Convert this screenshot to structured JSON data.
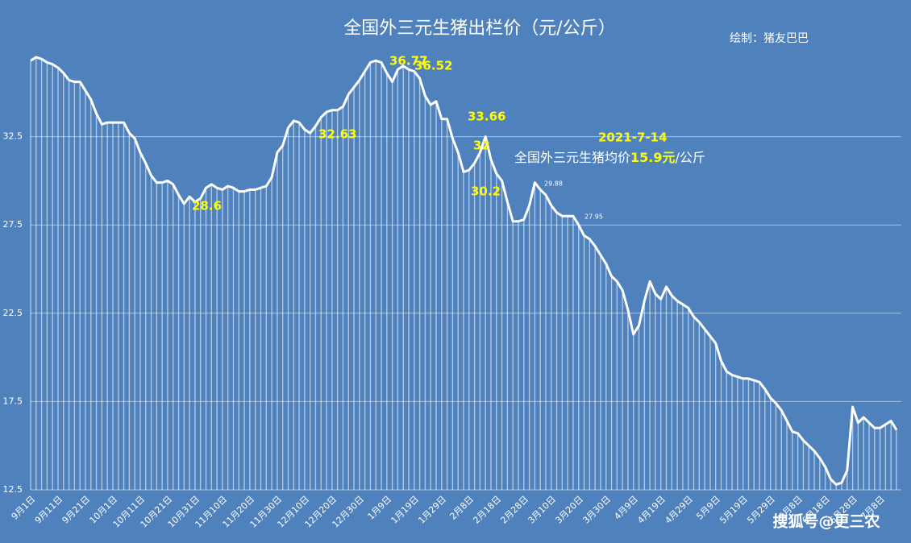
{
  "chart_data": {
    "type": "area",
    "title": "全国外三元生猪出栏价（元/公斤）",
    "credit": "绘制：猪友巴巴",
    "watermark": "搜狐号@更三农",
    "annotations": [
      "36.77",
      "36.52",
      "33.66",
      "32",
      "32.63",
      "28.6",
      "30.2",
      "29.88",
      "27.95",
      "2021-7-14"
    ],
    "summary": [
      "全国外三元生猪均价",
      "15.9元",
      "/公斤"
    ],
    "categories": [
      "9月1日",
      null,
      null,
      null,
      null,
      "9月11日",
      null,
      null,
      null,
      null,
      "9月21日",
      null,
      null,
      null,
      null,
      "10月1日",
      null,
      null,
      null,
      null,
      "10月11日",
      null,
      null,
      null,
      null,
      "10月21日",
      null,
      null,
      null,
      null,
      "10月31日",
      null,
      null,
      null,
      null,
      "11月10日",
      null,
      null,
      null,
      null,
      "11月20日",
      null,
      null,
      null,
      null,
      "11月30日",
      null,
      null,
      null,
      null,
      "12月10日",
      null,
      null,
      null,
      null,
      "12月20日",
      null,
      null,
      null,
      null,
      "12月30日",
      null,
      null,
      null,
      null,
      "1月9日",
      null,
      null,
      null,
      null,
      "1月19日",
      null,
      null,
      null,
      null,
      "1月29日",
      null,
      null,
      null,
      null,
      "2月8日",
      null,
      null,
      null,
      null,
      "2月18日",
      null,
      null,
      null,
      null,
      "2月28日",
      null,
      null,
      null,
      null,
      "3月10日",
      null,
      null,
      null,
      null,
      "3月20日",
      null,
      null,
      null,
      null,
      "3月30日",
      null,
      null,
      null,
      null,
      "4月9日",
      null,
      null,
      null,
      null,
      "4月19日",
      null,
      null,
      null,
      null,
      "4月29日",
      null,
      null,
      null,
      null,
      "5月9日",
      null,
      null,
      null,
      null,
      "5月19日",
      null,
      null,
      null,
      null,
      "5月29日",
      null,
      null,
      null,
      null,
      "6月8日",
      null,
      null,
      null,
      null,
      "6月18日",
      null,
      null,
      null,
      null,
      "6月28日",
      null,
      null,
      null,
      null,
      "7月8日",
      null,
      null,
      null
    ],
    "values": [
      36.8,
      37.0,
      36.9,
      36.7,
      36.6,
      36.4,
      36.1,
      35.7,
      35.6,
      35.6,
      35.1,
      34.6,
      33.8,
      33.2,
      33.3,
      33.3,
      33.3,
      33.3,
      32.7,
      32.4,
      31.6,
      31.0,
      30.3,
      29.9,
      29.9,
      30.0,
      29.8,
      29.2,
      28.7,
      29.1,
      28.8,
      29.0,
      29.6,
      29.8,
      29.6,
      29.5,
      29.7,
      29.6,
      29.4,
      29.4,
      29.5,
      29.5,
      29.6,
      29.7,
      30.2,
      31.6,
      32.0,
      33.0,
      33.4,
      33.3,
      32.9,
      32.7,
      33.1,
      33.6,
      33.9,
      34.0,
      34.0,
      34.2,
      34.9,
      35.3,
      35.7,
      36.2,
      36.7,
      36.8,
      36.7,
      36.1,
      35.6,
      36.3,
      36.5,
      36.3,
      36.2,
      35.8,
      34.8,
      34.3,
      34.5,
      33.5,
      33.5,
      32.4,
      31.6,
      30.5,
      30.6,
      31.0,
      31.6,
      32.5,
      31.2,
      30.4,
      30.0,
      28.8,
      27.7,
      27.7,
      27.8,
      28.6,
      29.9,
      29.5,
      29.2,
      28.6,
      28.2,
      28.0,
      28.0,
      28.0,
      27.5,
      26.9,
      26.7,
      26.3,
      25.8,
      25.3,
      24.6,
      24.3,
      23.8,
      22.7,
      21.3,
      21.8,
      23.2,
      24.3,
      23.6,
      23.3,
      24.0,
      23.5,
      23.2,
      23.0,
      22.8,
      22.3,
      22.0,
      21.6,
      21.2,
      20.8,
      19.8,
      19.2,
      19.0,
      18.9,
      18.8,
      18.8,
      18.7,
      18.6,
      18.2,
      17.7,
      17.4,
      17.0,
      16.4,
      15.8,
      15.7,
      15.3,
      15.0,
      14.7,
      14.3,
      13.8,
      13.1,
      12.8,
      12.9,
      13.6,
      17.2,
      16.3,
      16.6,
      16.3,
      16.0,
      16.0,
      16.2,
      16.4,
      15.9
    ],
    "color": "#ffffff",
    "background": "#4f81bd",
    "ylim": [
      12.5,
      37.5
    ],
    "yticks": [
      12.5,
      17.5,
      22.5,
      27.5,
      32.5
    ],
    "grid": true
  }
}
